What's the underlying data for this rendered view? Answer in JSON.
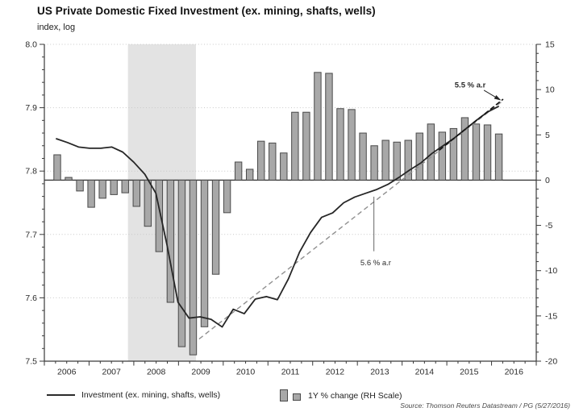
{
  "title": "US Private Domestic Fixed Investment (ex. mining, shafts, wells)",
  "subtitle": "index, log",
  "source": "Source: Thomson Reuters Datastream / PG (5/27/2016)",
  "legend": {
    "line_label": "Investment (ex. mining, shafts, wells)",
    "bar_label": "1Y % change (RH Scale)"
  },
  "colors": {
    "bar_fill": "#a8a8a8",
    "bar_stroke": "#4a4a4a",
    "line": "#262626",
    "trend_gray": "#8f8f8f",
    "trend_black": "#141414",
    "band": "#e3e3e3",
    "grid": "#c8c8c8",
    "axis": "#3a3a3a",
    "annotation_text": "#222222"
  },
  "chart_data": {
    "type": "line+bar",
    "title": "US Private Domestic Fixed Investment (ex. mining, shafts, wells)",
    "left_axis": {
      "title": "index, log",
      "min": 7.5,
      "max": 8.0,
      "tick_labels": [
        "8.0",
        "7.9",
        "7.8",
        "7.7",
        "7.6",
        "7.5"
      ],
      "tick_values": [
        8.0,
        7.9,
        7.8,
        7.7,
        7.6,
        7.5
      ],
      "minor_step": 0.02,
      "grid": true
    },
    "right_axis": {
      "min": -20,
      "max": 15,
      "tick_values": [
        15,
        10,
        5,
        0,
        -5,
        -10,
        -15,
        -20
      ],
      "minor_step": 1,
      "zero_line": true
    },
    "x_axis": {
      "start": 2006,
      "end": 2017,
      "year_labels": [
        "2006",
        "2007",
        "2008",
        "2009",
        "2010",
        "2011",
        "2012",
        "2013",
        "2014",
        "2015",
        "2016"
      ],
      "minor_step": 0.25
    },
    "recession_band": {
      "from_t": 2007.87,
      "to_t": 2009.39
    },
    "series": [
      {
        "name": "Investment (ex. mining, shafts, wells)",
        "type": "line",
        "axis": "left",
        "x_start": 2006.0,
        "x_step": 0.25,
        "values": [
          7.851,
          7.845,
          7.838,
          7.836,
          7.836,
          7.838,
          7.83,
          7.814,
          7.795,
          7.765,
          7.684,
          7.593,
          7.568,
          7.57,
          7.566,
          7.554,
          7.582,
          7.575,
          7.598,
          7.602,
          7.597,
          7.63,
          7.672,
          7.703,
          7.727,
          7.734,
          7.75,
          7.759,
          7.765,
          7.771,
          7.779,
          7.79,
          7.802,
          7.813,
          7.828,
          7.84,
          7.852,
          7.866,
          7.88,
          7.893,
          7.902
        ]
      },
      {
        "name": "1Y % change (RH Scale)",
        "type": "bar",
        "axis": "right",
        "quarters": [
          "2006 Q1",
          "2006 Q2",
          "2006 Q3",
          "2006 Q4",
          "2007 Q1",
          "2007 Q2",
          "2007 Q3",
          "2007 Q4",
          "2008 Q1",
          "2008 Q2",
          "2008 Q3",
          "2008 Q4",
          "2009 Q1",
          "2009 Q2",
          "2009 Q3",
          "2009 Q4",
          "2010 Q1",
          "2010 Q2",
          "2010 Q3",
          "2010 Q4",
          "2011 Q1",
          "2011 Q2",
          "2011 Q3",
          "2011 Q4",
          "2012 Q1",
          "2012 Q2",
          "2012 Q3",
          "2012 Q4",
          "2013 Q1",
          "2013 Q2",
          "2013 Q3",
          "2013 Q4",
          "2014 Q1",
          "2014 Q2",
          "2014 Q3",
          "2014 Q4",
          "2015 Q1",
          "2015 Q2",
          "2015 Q3",
          "2015 Q4"
        ],
        "values": [
          2.8,
          0.3,
          -1.2,
          -3.0,
          -2.0,
          -1.6,
          -1.4,
          -2.9,
          -5.1,
          -7.9,
          -13.5,
          -18.4,
          -19.3,
          -16.2,
          -10.4,
          -3.6,
          2.0,
          1.2,
          4.3,
          4.1,
          3.0,
          7.5,
          7.5,
          11.9,
          11.8,
          7.9,
          7.8,
          5.2,
          3.8,
          4.4,
          4.2,
          4.4,
          5.2,
          6.2,
          5.3,
          5.7,
          6.9,
          6.2,
          6.1,
          5.1
        ]
      }
    ],
    "trend_lines": [
      {
        "label": "5.6 % a.r",
        "style": "gray-dashed",
        "t1": 2009.46,
        "v1": 7.535,
        "t2": 2016.27,
        "v2": 7.912
      },
      {
        "label": "5.5 % a.r",
        "style": "black-dashed",
        "t1": 2014.83,
        "v1": 7.833,
        "t2": 2016.26,
        "v2": 7.9135
      }
    ],
    "annotations": [
      {
        "text": "5.5 % a.r",
        "weight": "bold",
        "t": 2015.87,
        "v": 7.932,
        "anchor": "end",
        "arrow": {
          "t1": 2015.83,
          "v1": 7.9275,
          "t2": 2016.19,
          "v2": 7.9125
        }
      },
      {
        "text": "5.6 % a.r",
        "weight": "normal",
        "t": 2013.41,
        "v": 7.6515,
        "anchor": "middle",
        "pointer": {
          "t1": 2013.37,
          "v1": 7.7596,
          "t2": 2013.37,
          "v2": 7.6735
        }
      }
    ]
  }
}
